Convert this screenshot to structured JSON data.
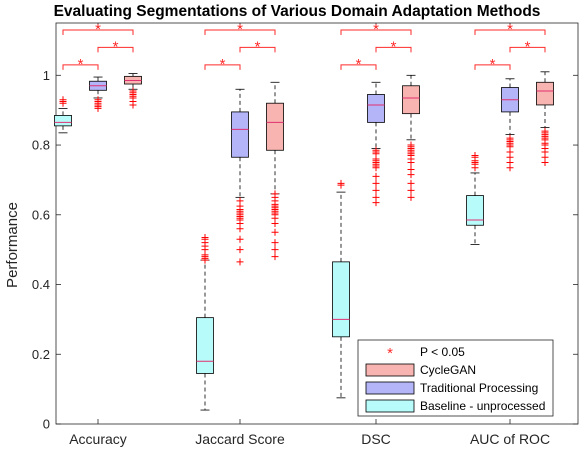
{
  "chart_data": {
    "type": "boxplot",
    "title": "Evaluating Segmentations of Various Domain Adaptation Methods",
    "xlabel": "",
    "ylabel": "Performance",
    "ylim": [
      0,
      1.15
    ],
    "yticks": [
      "0",
      "0.2",
      "0.4",
      "0.6",
      "0.8",
      "1"
    ],
    "ytick_values": [
      0,
      0.2,
      0.4,
      0.6,
      0.8,
      1.0
    ],
    "categories": [
      "Accuracy",
      "Jaccard Score",
      "DSC",
      "AUC of ROC"
    ],
    "series": [
      {
        "name": "Baseline - unprocessed",
        "fill": "#b8fbfb",
        "boxes": [
          {
            "q1": 0.855,
            "median": 0.865,
            "q3": 0.885,
            "wlo": 0.835,
            "whi": 0.905,
            "outliers": [
              0.92,
              0.925,
              0.93
            ]
          },
          {
            "q1": 0.145,
            "median": 0.18,
            "q3": 0.305,
            "wlo": 0.04,
            "whi": 0.47,
            "outliers": [
              0.47,
              0.475,
              0.48,
              0.485,
              0.5,
              0.51,
              0.52,
              0.53,
              0.535
            ]
          },
          {
            "q1": 0.25,
            "median": 0.3,
            "q3": 0.465,
            "wlo": 0.075,
            "whi": 0.665,
            "outliers": [
              0.685,
              0.69
            ]
          },
          {
            "q1": 0.57,
            "median": 0.585,
            "q3": 0.655,
            "wlo": 0.515,
            "whi": 0.72,
            "outliers": [
              0.735,
              0.745,
              0.75,
              0.755,
              0.765,
              0.77
            ]
          }
        ]
      },
      {
        "name": "Traditional Processing",
        "fill": "#b4b4f8",
        "boxes": [
          {
            "q1": 0.957,
            "median": 0.97,
            "q3": 0.983,
            "wlo": 0.935,
            "whi": 0.995,
            "outliers": [
              0.905,
              0.91,
              0.915,
              0.92,
              0.925,
              0.93
            ]
          },
          {
            "q1": 0.765,
            "median": 0.845,
            "q3": 0.895,
            "wlo": 0.65,
            "whi": 0.96,
            "outliers": [
              0.465,
              0.5,
              0.53,
              0.56,
              0.575,
              0.585,
              0.59,
              0.595,
              0.6,
              0.605,
              0.61,
              0.615,
              0.625,
              0.64
            ]
          },
          {
            "q1": 0.865,
            "median": 0.915,
            "q3": 0.945,
            "wlo": 0.79,
            "whi": 0.98,
            "outliers": [
              0.635,
              0.65,
              0.67,
              0.69,
              0.71,
              0.735,
              0.74,
              0.745,
              0.75,
              0.755,
              0.76,
              0.775,
              0.78,
              0.785
            ]
          },
          {
            "q1": 0.895,
            "median": 0.93,
            "q3": 0.965,
            "wlo": 0.83,
            "whi": 0.99,
            "outliers": [
              0.735,
              0.75,
              0.765,
              0.78,
              0.795,
              0.8,
              0.805,
              0.81,
              0.815,
              0.82
            ]
          }
        ]
      },
      {
        "name": "CycleGAN",
        "fill": "#f7b4b0",
        "boxes": [
          {
            "q1": 0.975,
            "median": 0.985,
            "q3": 0.997,
            "wlo": 0.96,
            "whi": 1.005,
            "outliers": [
              0.915,
              0.925,
              0.935,
              0.94,
              0.945,
              0.95,
              0.955
            ]
          },
          {
            "q1": 0.785,
            "median": 0.865,
            "q3": 0.92,
            "wlo": 0.66,
            "whi": 0.98,
            "outliers": [
              0.48,
              0.5,
              0.52,
              0.55,
              0.575,
              0.59,
              0.6,
              0.605,
              0.61,
              0.615,
              0.62,
              0.625,
              0.63,
              0.64,
              0.65,
              0.66
            ]
          },
          {
            "q1": 0.89,
            "median": 0.935,
            "q3": 0.97,
            "wlo": 0.815,
            "whi": 1.0,
            "outliers": [
              0.65,
              0.67,
              0.69,
              0.715,
              0.73,
              0.75,
              0.76,
              0.77,
              0.775,
              0.78,
              0.785,
              0.79,
              0.795,
              0.8
            ]
          },
          {
            "q1": 0.915,
            "median": 0.955,
            "q3": 0.98,
            "wlo": 0.85,
            "whi": 1.01,
            "outliers": [
              0.75,
              0.765,
              0.78,
              0.79,
              0.8,
              0.805,
              0.815,
              0.82,
              0.825,
              0.83,
              0.835,
              0.84
            ]
          }
        ]
      }
    ],
    "significance": {
      "symbol": "*",
      "color": "#ff2a2a",
      "brackets": [
        {
          "from": 0,
          "to": 1,
          "level": 1.03
        },
        {
          "from": 1,
          "to": 2,
          "level": 1.08
        },
        {
          "from": 0,
          "to": 2,
          "level": 1.13
        }
      ]
    },
    "legend": {
      "placement": "bottom-right",
      "entries": [
        {
          "label": "P < 0.05",
          "kind": "marker",
          "color": "#ff2a2a"
        },
        {
          "label": "CycleGAN",
          "kind": "patch",
          "color": "#f7b4b0"
        },
        {
          "label": "Traditional Processing",
          "kind": "patch",
          "color": "#b4b4f8"
        },
        {
          "label": "Baseline - unprocessed",
          "kind": "patch",
          "color": "#b8fbfb"
        }
      ]
    }
  }
}
